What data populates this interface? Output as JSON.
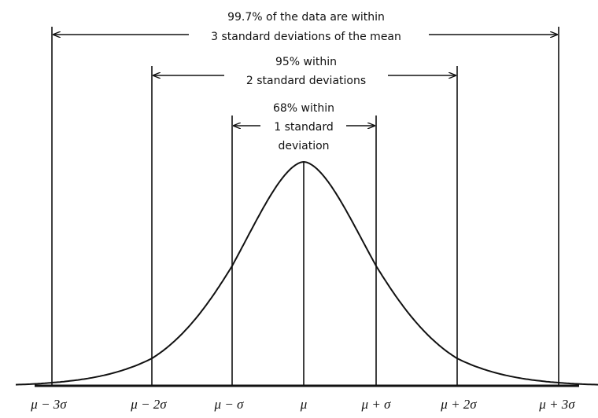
{
  "annotations": [
    {
      "lines": [
        "99.7% of the data are within",
        "3 standard deviations of the mean"
      ]
    },
    {
      "lines": [
        "95% within",
        "2 standard deviations"
      ]
    },
    {
      "lines": [
        "68% within",
        "1 standard",
        "deviation"
      ]
    }
  ],
  "axis_labels": [
    "μ − 3σ",
    "μ − 2σ",
    "μ − σ",
    "μ",
    "μ + σ",
    "μ + 2σ",
    "μ + 3σ"
  ]
}
